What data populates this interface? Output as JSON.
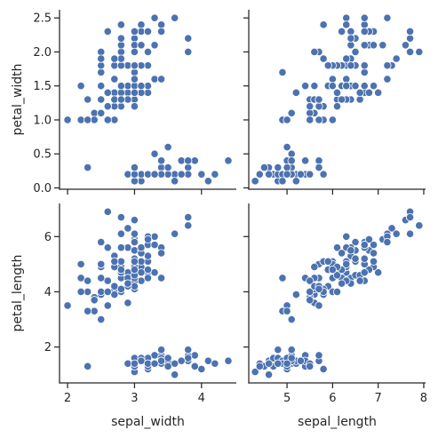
{
  "chart_data": {
    "type": "scatter",
    "title": "",
    "marker_color": "#4c72b0",
    "marker_edge_color": "#ffffff",
    "grid": false,
    "x_vars": [
      "sepal_width",
      "sepal_length"
    ],
    "y_vars": [
      "petal_width",
      "petal_length"
    ],
    "axes": {
      "sepal_width": {
        "label": "sepal_width",
        "range": [
          1.88,
          4.52
        ],
        "ticks": [
          2,
          3,
          4
        ],
        "tick_labels": [
          "2",
          "3",
          "4"
        ]
      },
      "sepal_length": {
        "label": "sepal_length",
        "range": [
          4.16,
          8.04
        ],
        "ticks": [
          5,
          6,
          7,
          8
        ],
        "tick_labels": [
          "5",
          "6",
          "7",
          "8"
        ]
      },
      "petal_width": {
        "label": "petal_width",
        "range": [
          -0.02,
          2.62
        ],
        "ticks": [
          0.0,
          0.5,
          1.0,
          1.5,
          2.0,
          2.5
        ],
        "tick_labels": [
          "0.0",
          "0.5",
          "1.0",
          "1.5",
          "2.0",
          "2.5"
        ]
      },
      "petal_length": {
        "label": "petal_length",
        "range": [
          0.7,
          7.2
        ],
        "ticks": [
          2,
          4,
          6
        ],
        "tick_labels": [
          "2",
          "4",
          "6"
        ]
      }
    },
    "points": [
      [
        5.1,
        3.5,
        1.4,
        0.2
      ],
      [
        4.9,
        3.0,
        1.4,
        0.2
      ],
      [
        4.7,
        3.2,
        1.3,
        0.2
      ],
      [
        4.6,
        3.1,
        1.5,
        0.2
      ],
      [
        5.0,
        3.6,
        1.4,
        0.2
      ],
      [
        5.4,
        3.9,
        1.7,
        0.4
      ],
      [
        4.6,
        3.4,
        1.4,
        0.3
      ],
      [
        5.0,
        3.4,
        1.5,
        0.2
      ],
      [
        4.4,
        2.9,
        1.4,
        0.2
      ],
      [
        4.9,
        3.1,
        1.5,
        0.1
      ],
      [
        5.4,
        3.7,
        1.5,
        0.2
      ],
      [
        4.8,
        3.4,
        1.6,
        0.2
      ],
      [
        4.8,
        3.0,
        1.4,
        0.1
      ],
      [
        4.3,
        3.0,
        1.1,
        0.1
      ],
      [
        5.8,
        4.0,
        1.2,
        0.2
      ],
      [
        5.7,
        4.4,
        1.5,
        0.4
      ],
      [
        5.4,
        3.9,
        1.3,
        0.4
      ],
      [
        5.1,
        3.5,
        1.4,
        0.3
      ],
      [
        5.7,
        3.8,
        1.7,
        0.3
      ],
      [
        5.1,
        3.8,
        1.5,
        0.3
      ],
      [
        5.4,
        3.4,
        1.7,
        0.2
      ],
      [
        5.1,
        3.7,
        1.5,
        0.4
      ],
      [
        4.6,
        3.6,
        1.0,
        0.2
      ],
      [
        5.1,
        3.3,
        1.7,
        0.5
      ],
      [
        4.8,
        3.4,
        1.9,
        0.2
      ],
      [
        5.0,
        3.0,
        1.6,
        0.2
      ],
      [
        5.0,
        3.4,
        1.6,
        0.4
      ],
      [
        5.2,
        3.5,
        1.5,
        0.2
      ],
      [
        5.2,
        3.4,
        1.4,
        0.2
      ],
      [
        4.7,
        3.2,
        1.6,
        0.2
      ],
      [
        4.8,
        3.1,
        1.6,
        0.2
      ],
      [
        5.4,
        3.4,
        1.5,
        0.4
      ],
      [
        5.2,
        4.1,
        1.5,
        0.1
      ],
      [
        5.5,
        4.2,
        1.4,
        0.2
      ],
      [
        4.9,
        3.1,
        1.5,
        0.2
      ],
      [
        5.0,
        3.2,
        1.2,
        0.2
      ],
      [
        5.5,
        3.5,
        1.3,
        0.2
      ],
      [
        4.9,
        3.6,
        1.4,
        0.1
      ],
      [
        4.4,
        3.0,
        1.3,
        0.2
      ],
      [
        5.1,
        3.4,
        1.5,
        0.2
      ],
      [
        5.0,
        3.5,
        1.3,
        0.3
      ],
      [
        4.5,
        2.3,
        1.3,
        0.3
      ],
      [
        4.4,
        3.2,
        1.3,
        0.2
      ],
      [
        5.0,
        3.5,
        1.6,
        0.6
      ],
      [
        5.1,
        3.8,
        1.9,
        0.4
      ],
      [
        4.8,
        3.0,
        1.4,
        0.3
      ],
      [
        5.1,
        3.8,
        1.6,
        0.2
      ],
      [
        4.6,
        3.2,
        1.4,
        0.2
      ],
      [
        5.3,
        3.7,
        1.5,
        0.2
      ],
      [
        5.0,
        3.3,
        1.4,
        0.2
      ],
      [
        7.0,
        3.2,
        4.7,
        1.4
      ],
      [
        6.4,
        3.2,
        4.5,
        1.5
      ],
      [
        6.9,
        3.1,
        4.9,
        1.5
      ],
      [
        5.5,
        2.3,
        4.0,
        1.3
      ],
      [
        6.5,
        2.8,
        4.6,
        1.5
      ],
      [
        5.7,
        2.8,
        4.5,
        1.3
      ],
      [
        6.3,
        3.3,
        4.7,
        1.6
      ],
      [
        4.9,
        2.4,
        3.3,
        1.0
      ],
      [
        6.6,
        2.9,
        4.6,
        1.3
      ],
      [
        5.2,
        2.7,
        3.9,
        1.4
      ],
      [
        5.0,
        2.0,
        3.5,
        1.0
      ],
      [
        5.9,
        3.0,
        4.2,
        1.5
      ],
      [
        6.0,
        2.2,
        4.0,
        1.0
      ],
      [
        6.1,
        2.9,
        4.7,
        1.4
      ],
      [
        5.6,
        2.9,
        3.6,
        1.3
      ],
      [
        6.7,
        3.1,
        4.4,
        1.4
      ],
      [
        5.6,
        3.0,
        4.5,
        1.5
      ],
      [
        5.8,
        2.7,
        4.1,
        1.0
      ],
      [
        6.2,
        2.2,
        4.5,
        1.5
      ],
      [
        5.6,
        2.5,
        3.9,
        1.1
      ],
      [
        5.9,
        3.2,
        4.8,
        1.8
      ],
      [
        6.1,
        2.8,
        4.0,
        1.3
      ],
      [
        6.3,
        2.5,
        4.9,
        1.5
      ],
      [
        6.1,
        2.8,
        4.7,
        1.2
      ],
      [
        6.4,
        2.9,
        4.3,
        1.3
      ],
      [
        6.6,
        3.0,
        4.4,
        1.4
      ],
      [
        6.8,
        2.8,
        4.8,
        1.4
      ],
      [
        6.7,
        3.0,
        5.0,
        1.7
      ],
      [
        6.0,
        2.9,
        4.5,
        1.5
      ],
      [
        5.7,
        2.6,
        3.5,
        1.0
      ],
      [
        5.5,
        2.4,
        3.8,
        1.1
      ],
      [
        5.5,
        2.4,
        3.7,
        1.0
      ],
      [
        5.8,
        2.7,
        3.9,
        1.2
      ],
      [
        6.0,
        2.7,
        5.1,
        1.6
      ],
      [
        5.4,
        3.0,
        4.5,
        1.5
      ],
      [
        6.0,
        3.4,
        4.5,
        1.6
      ],
      [
        6.7,
        3.1,
        4.7,
        1.5
      ],
      [
        6.3,
        2.3,
        4.4,
        1.3
      ],
      [
        5.6,
        3.0,
        4.1,
        1.3
      ],
      [
        5.5,
        2.5,
        4.0,
        1.3
      ],
      [
        5.5,
        2.6,
        4.4,
        1.2
      ],
      [
        6.1,
        3.0,
        4.6,
        1.4
      ],
      [
        5.8,
        2.6,
        4.0,
        1.2
      ],
      [
        5.0,
        2.3,
        3.3,
        1.0
      ],
      [
        5.6,
        2.7,
        4.2,
        1.3
      ],
      [
        5.7,
        3.0,
        4.2,
        1.2
      ],
      [
        5.7,
        2.9,
        4.2,
        1.3
      ],
      [
        6.2,
        2.9,
        4.3,
        1.3
      ],
      [
        5.1,
        2.5,
        3.0,
        1.1
      ],
      [
        5.7,
        2.8,
        4.1,
        1.3
      ],
      [
        6.3,
        3.3,
        6.0,
        2.5
      ],
      [
        5.8,
        2.7,
        5.1,
        1.9
      ],
      [
        7.1,
        3.0,
        5.9,
        2.1
      ],
      [
        6.3,
        2.9,
        5.6,
        1.8
      ],
      [
        6.5,
        3.0,
        5.8,
        2.2
      ],
      [
        7.6,
        3.0,
        6.6,
        2.1
      ],
      [
        4.9,
        2.5,
        4.5,
        1.7
      ],
      [
        7.3,
        2.9,
        6.3,
        1.8
      ],
      [
        6.7,
        2.5,
        5.8,
        1.8
      ],
      [
        7.2,
        3.6,
        6.1,
        2.5
      ],
      [
        6.5,
        3.2,
        5.1,
        2.0
      ],
      [
        6.4,
        2.7,
        5.3,
        1.9
      ],
      [
        6.8,
        3.0,
        5.5,
        2.1
      ],
      [
        5.7,
        2.5,
        5.0,
        2.0
      ],
      [
        5.8,
        2.8,
        5.1,
        2.4
      ],
      [
        6.4,
        3.2,
        5.3,
        2.3
      ],
      [
        6.5,
        3.0,
        5.5,
        1.8
      ],
      [
        7.7,
        3.8,
        6.7,
        2.2
      ],
      [
        7.7,
        2.6,
        6.9,
        2.3
      ],
      [
        6.0,
        2.2,
        5.0,
        1.5
      ],
      [
        6.9,
        3.2,
        5.7,
        2.3
      ],
      [
        5.6,
        2.8,
        4.9,
        2.0
      ],
      [
        7.7,
        2.8,
        6.7,
        2.0
      ],
      [
        6.3,
        2.7,
        4.9,
        1.8
      ],
      [
        6.7,
        3.3,
        5.7,
        2.1
      ],
      [
        7.2,
        3.2,
        6.0,
        1.8
      ],
      [
        6.2,
        2.8,
        4.8,
        1.8
      ],
      [
        6.1,
        3.0,
        4.9,
        1.8
      ],
      [
        6.4,
        2.8,
        5.6,
        2.1
      ],
      [
        7.2,
        3.0,
        5.8,
        1.6
      ],
      [
        7.4,
        2.8,
        6.1,
        1.9
      ],
      [
        7.9,
        3.8,
        6.4,
        2.0
      ],
      [
        6.4,
        2.8,
        5.6,
        2.2
      ],
      [
        6.3,
        2.8,
        5.1,
        1.5
      ],
      [
        6.1,
        2.6,
        5.6,
        1.4
      ],
      [
        7.7,
        3.0,
        6.1,
        2.3
      ],
      [
        6.3,
        3.4,
        5.6,
        2.4
      ],
      [
        6.4,
        3.1,
        5.5,
        1.8
      ],
      [
        6.0,
        3.0,
        4.8,
        1.8
      ],
      [
        6.9,
        3.1,
        5.4,
        2.1
      ],
      [
        6.7,
        3.1,
        5.6,
        2.4
      ],
      [
        6.9,
        3.1,
        5.1,
        2.3
      ],
      [
        5.8,
        2.7,
        5.1,
        1.9
      ],
      [
        6.8,
        3.2,
        5.9,
        2.3
      ],
      [
        6.7,
        3.3,
        5.7,
        2.5
      ],
      [
        6.7,
        3.0,
        5.2,
        2.3
      ],
      [
        6.3,
        2.5,
        5.0,
        1.9
      ],
      [
        6.5,
        3.0,
        5.2,
        2.0
      ],
      [
        6.2,
        3.4,
        5.4,
        2.3
      ],
      [
        5.9,
        3.0,
        5.1,
        1.8
      ]
    ],
    "point_columns": [
      "sepal_length",
      "sepal_width",
      "petal_length",
      "petal_width"
    ]
  }
}
